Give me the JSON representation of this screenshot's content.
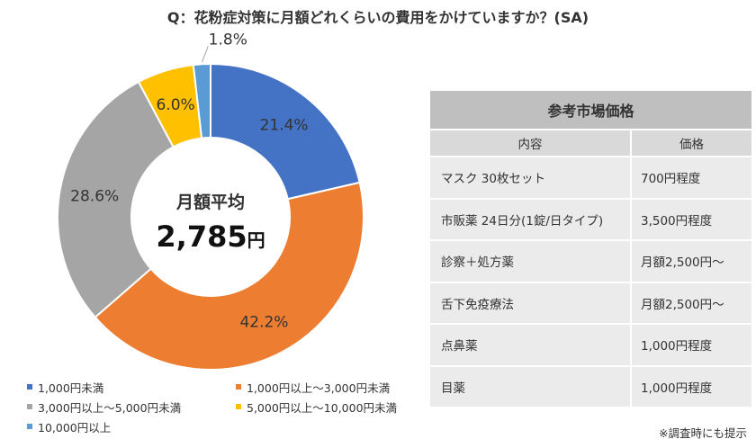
{
  "title": "Q：花粉症対策に月額どれくらいの費用をかけていますか？(SA)",
  "chart_data": {
    "type": "pie",
    "variant": "donut",
    "title": "Q：花粉症対策に月額どれくらいの費用をかけていますか？(SA)",
    "categories": [
      "1,000円未満",
      "1,000円以上〜3,000円未満",
      "3,000円以上〜5,000円未満",
      "5,000円以上〜10,000円未満",
      "10,000円以上"
    ],
    "values": [
      21.4,
      42.2,
      28.6,
      6.0,
      1.8
    ],
    "value_labels": [
      "21.4%",
      "42.2%",
      "28.6%",
      "6.0%",
      "1.8%"
    ],
    "colors": [
      "#4472c4",
      "#ed7d31",
      "#a5a5a5",
      "#ffc000",
      "#5b9bd5"
    ],
    "center_label": "月額平均",
    "center_value": "2,785",
    "center_unit": "円",
    "legend_position": "bottom"
  },
  "table": {
    "title": "参考市場価格",
    "headers": [
      "内容",
      "価格"
    ],
    "rows": [
      {
        "item": "マスク 30枚セット",
        "price": "700円程度"
      },
      {
        "item": "市販薬 24日分(1錠/日タイプ)",
        "price": "3,500円程度"
      },
      {
        "item": "診察＋処方薬",
        "price": "月額2,500円〜"
      },
      {
        "item": "舌下免疫療法",
        "price": "月額2,500円〜"
      },
      {
        "item": "点鼻薬",
        "price": "1,000円程度"
      },
      {
        "item": "目薬",
        "price": "1,000円程度"
      }
    ]
  },
  "note": "※調査時にも提示"
}
